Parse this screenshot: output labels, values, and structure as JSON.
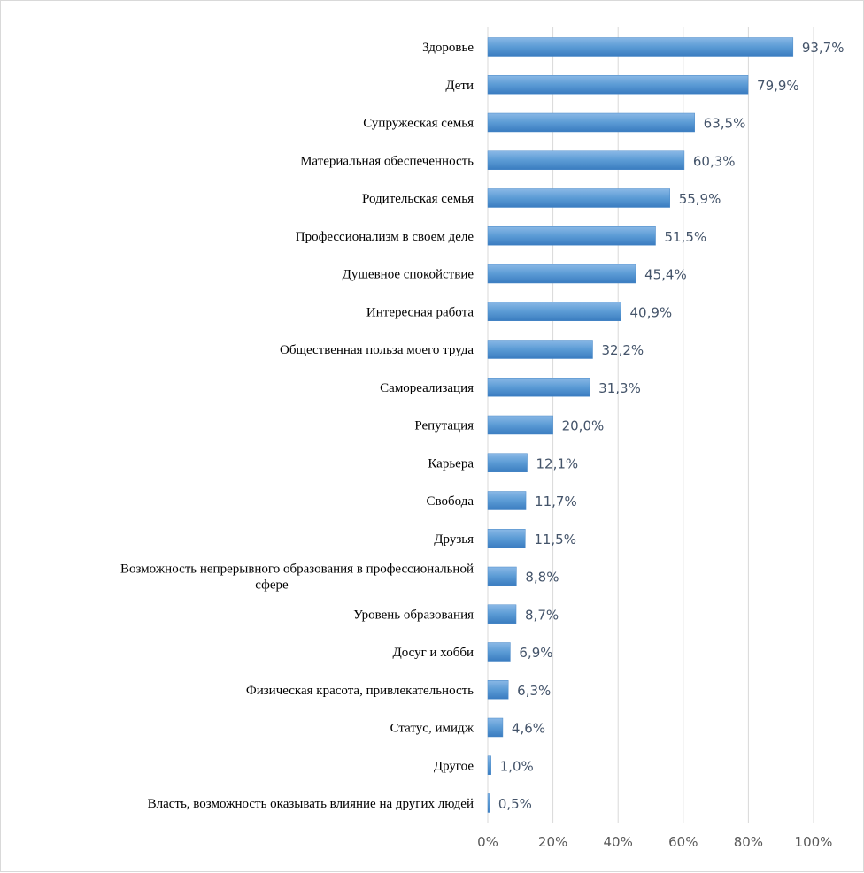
{
  "chart_data": {
    "type": "bar",
    "orientation": "horizontal",
    "title": "",
    "xlabel": "",
    "ylabel": "",
    "xlim": [
      0,
      100
    ],
    "ticks": [
      "0%",
      "20%",
      "40%",
      "60%",
      "80%",
      "100%"
    ],
    "tick_values": [
      0,
      20,
      40,
      60,
      80,
      100
    ],
    "grid": true,
    "legend": "none",
    "bar_color": "#5b9bd5",
    "categories": [
      [
        "Здоровье"
      ],
      [
        "Дети"
      ],
      [
        "Супружеская семья"
      ],
      [
        "Материальная обеспеченность"
      ],
      [
        "Родительская семья"
      ],
      [
        "Профессионализм в своем деле"
      ],
      [
        "Душевное спокойствие"
      ],
      [
        "Интересная работа"
      ],
      [
        "Общественная польза моего труда"
      ],
      [
        "Самореализация"
      ],
      [
        "Репутация"
      ],
      [
        "Карьера"
      ],
      [
        "Свобода"
      ],
      [
        "Друзья"
      ],
      [
        "Возможность непрерывного образования в профессиональной",
        "сфере"
      ],
      [
        "Уровень образования"
      ],
      [
        "Досуг и хобби"
      ],
      [
        "Физическая красота, привлекательность"
      ],
      [
        "Статус, имидж"
      ],
      [
        "Другое"
      ],
      [
        "Власть, возможность оказывать влияние на других людей"
      ]
    ],
    "values": [
      93.7,
      79.9,
      63.5,
      60.3,
      55.9,
      51.5,
      45.4,
      40.9,
      32.2,
      31.3,
      20.0,
      12.1,
      11.7,
      11.5,
      8.8,
      8.7,
      6.9,
      6.3,
      4.6,
      1.0,
      0.5
    ],
    "value_labels": [
      "93,7%",
      "79,9%",
      "63,5%",
      "60,3%",
      "55,9%",
      "51,5%",
      "45,4%",
      "40,9%",
      "32,2%",
      "31,3%",
      "20,0%",
      "12,1%",
      "11,7%",
      "11,5%",
      "8,8%",
      "8,7%",
      "6,9%",
      "6,3%",
      "4,6%",
      "1,0%",
      "0,5%"
    ]
  }
}
